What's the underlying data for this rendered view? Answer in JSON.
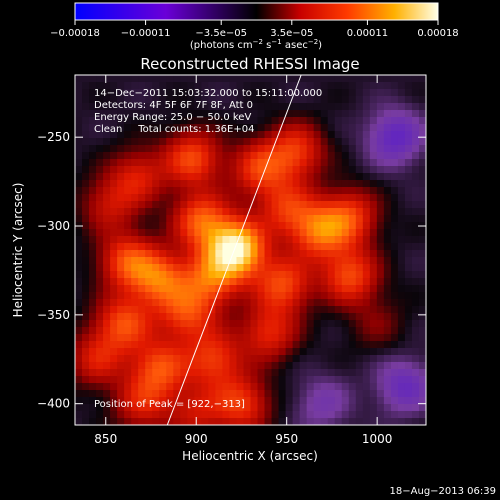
{
  "chart_data": {
    "type": "heatmap",
    "title": "Reconstructed RHESSI Image",
    "xlabel": "Heliocentric X (arcsec)",
    "ylabel": "Heliocentric Y (arcsec)",
    "xlim": [
      833,
      1027
    ],
    "ylim": [
      -412,
      -215
    ],
    "x_ticks": [
      {
        "value": 850,
        "label": "850"
      },
      {
        "value": 900,
        "label": "900"
      },
      {
        "value": 950,
        "label": "950"
      },
      {
        "value": 1000,
        "label": "1000"
      }
    ],
    "y_ticks": [
      {
        "value": -250,
        "label": "−250"
      },
      {
        "value": -300,
        "label": "−300"
      },
      {
        "value": -350,
        "label": "−350"
      },
      {
        "value": -400,
        "label": "−400"
      }
    ],
    "colorbar": {
      "range": [
        -0.00018,
        0.00018
      ],
      "ticks": [
        {
          "value": -0.00018,
          "label": "−0.00018"
        },
        {
          "value": -0.00011,
          "label": "−0.00011"
        },
        {
          "value": -3.5e-05,
          "label": "−3.5e−05"
        },
        {
          "value": 3.5e-05,
          "label": "3.5e−05"
        },
        {
          "value": 0.00011,
          "label": "0.00011"
        },
        {
          "value": 0.00018,
          "label": "0.00018"
        }
      ],
      "unit_label": {
        "main": "(photons cm",
        "exp1": "−2",
        "mid": " s",
        "exp2": "−1",
        "mid2": " asec",
        "exp3": "−2",
        "close": ")"
      }
    },
    "info_lines": [
      "14−Dec−2011 15:03:32.000 to 15:11:00.000",
      "Detectors: 4F 5F 6F 7F 8F, Att 0",
      "Energy Range: 25.0 − 50.0 keV",
      "Clean     Total counts: 1.36E+04"
    ],
    "peak": {
      "x": 922,
      "y": -313,
      "label": "Position of Peak = [922,−313]"
    },
    "limb_line": [
      [
        884,
        -412
      ],
      [
        958,
        -215
      ]
    ],
    "sources": [
      {
        "x": 922,
        "y": -313,
        "amp": 1.0
      },
      {
        "x": 903,
        "y": -297,
        "amp": 0.55
      },
      {
        "x": 880,
        "y": -330,
        "amp": 0.55
      },
      {
        "x": 862,
        "y": -320,
        "amp": 0.5
      },
      {
        "x": 852,
        "y": -288,
        "amp": 0.3
      },
      {
        "x": 868,
        "y": -272,
        "amp": 0.35
      },
      {
        "x": 898,
        "y": -262,
        "amp": 0.5
      },
      {
        "x": 935,
        "y": -268,
        "amp": 0.45
      },
      {
        "x": 955,
        "y": -258,
        "amp": 0.45
      },
      {
        "x": 950,
        "y": -290,
        "amp": 0.4
      },
      {
        "x": 968,
        "y": -303,
        "amp": 0.55
      },
      {
        "x": 985,
        "y": -295,
        "amp": 0.45
      },
      {
        "x": 985,
        "y": -328,
        "amp": 0.5
      },
      {
        "x": 948,
        "y": -333,
        "amp": 0.5
      },
      {
        "x": 908,
        "y": -330,
        "amp": 0.5
      },
      {
        "x": 895,
        "y": -350,
        "amp": 0.45
      },
      {
        "x": 860,
        "y": -355,
        "amp": 0.5
      },
      {
        "x": 845,
        "y": -375,
        "amp": 0.35
      },
      {
        "x": 880,
        "y": -380,
        "amp": 0.5
      },
      {
        "x": 910,
        "y": -375,
        "amp": 0.45
      },
      {
        "x": 925,
        "y": -400,
        "amp": 0.45
      },
      {
        "x": 940,
        "y": -360,
        "amp": 0.4
      },
      {
        "x": 870,
        "y": -400,
        "amp": 0.35
      },
      {
        "x": 900,
        "y": -405,
        "amp": 0.3
      },
      {
        "x": 1000,
        "y": -355,
        "amp": 0.15
      },
      {
        "x": 1010,
        "y": -250,
        "amp": -0.35
      },
      {
        "x": 1015,
        "y": -390,
        "amp": -0.3
      },
      {
        "x": 970,
        "y": -400,
        "amp": -0.2
      }
    ]
  },
  "footer": {
    "timestamp": "18−Aug−2013 06:39"
  }
}
